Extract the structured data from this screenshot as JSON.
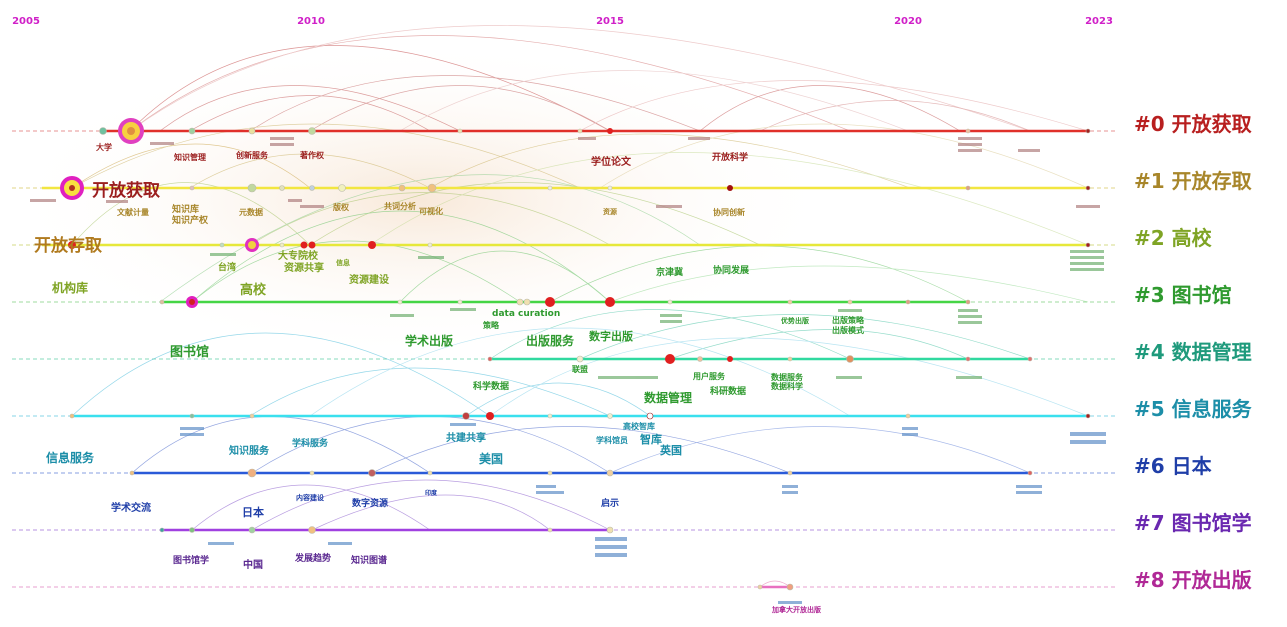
{
  "years": [
    "2005",
    "2010",
    "2015",
    "2020",
    "2023"
  ],
  "clusters": [
    {
      "id": "#0",
      "label": "开放获取",
      "color": "#b81f1f",
      "line": "#e0302a"
    },
    {
      "id": "#1",
      "label": "开放存取",
      "color": "#a8862a",
      "line": "#f2e640"
    },
    {
      "id": "#2",
      "label": "高校",
      "color": "#7fa425",
      "line": "#e6e83a"
    },
    {
      "id": "#3",
      "label": "图书馆",
      "color": "#2f9a2f",
      "line": "#45d545"
    },
    {
      "id": "#4",
      "label": "数据管理",
      "color": "#1f9a7c",
      "line": "#30d9a0"
    },
    {
      "id": "#5",
      "label": "信息服务",
      "color": "#1c8ea8",
      "line": "#3ae0ee"
    },
    {
      "id": "#6",
      "label": "日本",
      "color": "#1f3ea8",
      "line": "#2a5ad8"
    },
    {
      "id": "#7",
      "label": "图书馆学",
      "color": "#6a28b0",
      "line": "#a040e0"
    },
    {
      "id": "#8",
      "label": "开放出版",
      "color": "#b02896",
      "line": "#e870c0"
    }
  ],
  "keywords": [
    {
      "text": "开放获取",
      "color": "#9b1e1e",
      "size": 17
    },
    {
      "text": "开放存取",
      "color": "#b07a1e",
      "size": 17
    },
    {
      "text": "机构库",
      "color": "#7fa425",
      "size": 12
    },
    {
      "text": "高校",
      "color": "#7fa425",
      "size": 13
    },
    {
      "text": "图书馆",
      "color": "#2f9a2f",
      "size": 13
    },
    {
      "text": "信息服务",
      "color": "#1c8ea8",
      "size": 12
    },
    {
      "text": "学术交流",
      "color": "#1f3ea8",
      "size": 10
    },
    {
      "text": "日本",
      "color": "#1f3ea8",
      "size": 11
    },
    {
      "text": "图书馆学",
      "color": "#5a2890",
      "size": 9
    },
    {
      "text": "中国",
      "color": "#5a2890",
      "size": 10
    },
    {
      "text": "发展趋势",
      "color": "#5a2890",
      "size": 9
    },
    {
      "text": "知识图谱",
      "color": "#5a2890",
      "size": 9
    },
    {
      "text": "数字资源",
      "color": "#1f3ea8",
      "size": 9
    },
    {
      "text": "内容建设",
      "color": "#1f3ea8",
      "size": 7
    },
    {
      "text": "印度",
      "color": "#1f3ea8",
      "size": 6
    },
    {
      "text": "启示",
      "color": "#1f3ea8",
      "size": 9
    },
    {
      "text": "美国",
      "color": "#1c8ea8",
      "size": 12
    },
    {
      "text": "共建共享",
      "color": "#1c8ea8",
      "size": 10
    },
    {
      "text": "知识服务",
      "color": "#1c8ea8",
      "size": 10
    },
    {
      "text": "学科服务",
      "color": "#1c8ea8",
      "size": 9
    },
    {
      "text": "学科馆员",
      "color": "#1c8ea8",
      "size": 8
    },
    {
      "text": "智库",
      "color": "#1c8ea8",
      "size": 11
    },
    {
      "text": "英国",
      "color": "#1c8ea8",
      "size": 11
    },
    {
      "text": "高校智库",
      "color": "#1c8ea8",
      "size": 8
    },
    {
      "text": "学术出版",
      "color": "#2f9a2f",
      "size": 12
    },
    {
      "text": "出版服务",
      "color": "#2f9a2f",
      "size": 12
    },
    {
      "text": "数字出版",
      "color": "#2f9a2f",
      "size": 11
    },
    {
      "text": "数据管理",
      "color": "#2f9a2f",
      "size": 12
    },
    {
      "text": "科学数据",
      "color": "#2f9a2f",
      "size": 9
    },
    {
      "text": "科研数据",
      "color": "#2f9a2f",
      "size": 9
    },
    {
      "text": "用户服务",
      "color": "#2f9a2f",
      "size": 8
    },
    {
      "text": "联盟",
      "color": "#2f9a2f",
      "size": 8
    },
    {
      "text": "data curation",
      "color": "#2f9a2f",
      "size": 9
    },
    {
      "text": "策略",
      "color": "#2f9a2f",
      "size": 8
    },
    {
      "text": "京津冀",
      "color": "#2f9a2f",
      "size": 9
    },
    {
      "text": "协同发展",
      "color": "#2f9a2f",
      "size": 9
    },
    {
      "text": "优势出版",
      "color": "#2f9a2f",
      "size": 7
    },
    {
      "text": "出版策略",
      "color": "#2f9a2f",
      "size": 8
    },
    {
      "text": "出版模式",
      "color": "#2f9a2f",
      "size": 8
    },
    {
      "text": "数据服务",
      "color": "#2f9a2f",
      "size": 8
    },
    {
      "text": "数据科学",
      "color": "#2f9a2f",
      "size": 8
    },
    {
      "text": "资源建设",
      "color": "#7fa425",
      "size": 10
    },
    {
      "text": "资源共享",
      "color": "#7fa425",
      "size": 10
    },
    {
      "text": "大专院校",
      "color": "#7fa425",
      "size": 10
    },
    {
      "text": "台湾",
      "color": "#7fa425",
      "size": 9
    },
    {
      "text": "信息",
      "color": "#7fa425",
      "size": 7
    },
    {
      "text": "知识产权",
      "color": "#a8862a",
      "size": 9
    },
    {
      "text": "知识库",
      "color": "#a8862a",
      "size": 9
    },
    {
      "text": "文献计量",
      "color": "#a8862a",
      "size": 8
    },
    {
      "text": "元数据",
      "color": "#a8862a",
      "size": 8
    },
    {
      "text": "版权",
      "color": "#a8862a",
      "size": 8
    },
    {
      "text": "共词分析",
      "color": "#a8862a",
      "size": 8
    },
    {
      "text": "可视化",
      "color": "#a8862a",
      "size": 8
    },
    {
      "text": "资源",
      "color": "#a8862a",
      "size": 7
    },
    {
      "text": "协同创新",
      "color": "#a8862a",
      "size": 8
    },
    {
      "text": "大学",
      "color": "#9b1e1e",
      "size": 8
    },
    {
      "text": "知识管理",
      "color": "#9b1e1e",
      "size": 8
    },
    {
      "text": "创新服务",
      "color": "#9b1e1e",
      "size": 8
    },
    {
      "text": "著作权",
      "color": "#9b1e1e",
      "size": 8
    },
    {
      "text": "学位论文",
      "color": "#9b1e1e",
      "size": 10
    },
    {
      "text": "开放科学",
      "color": "#9b1e1e",
      "size": 9
    },
    {
      "text": "加拿大开放出版",
      "color": "#b02896",
      "size": 7
    }
  ]
}
